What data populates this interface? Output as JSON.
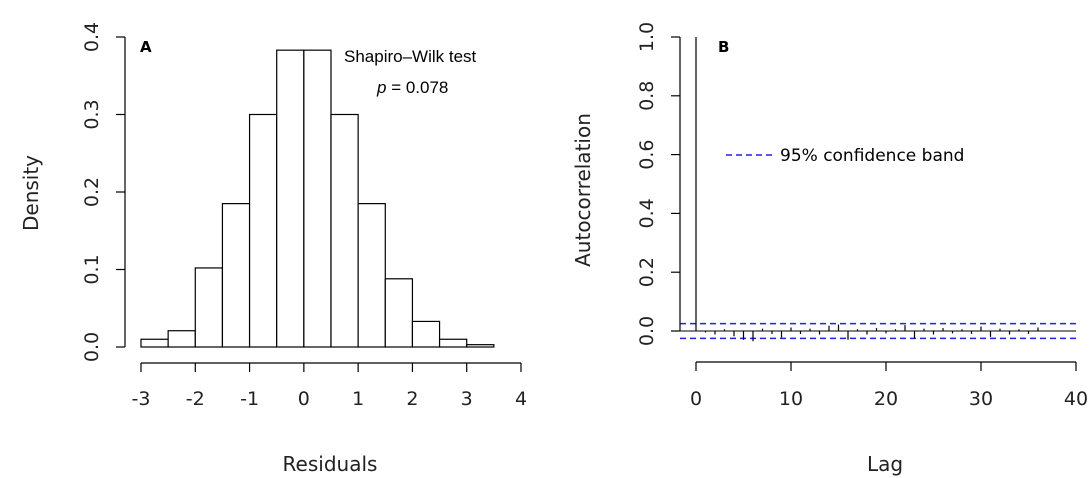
{
  "chart_data": [
    {
      "type": "bar",
      "panel_label": "A",
      "title": "",
      "xlabel": "Residuals",
      "ylabel": "Density",
      "xlim": [
        -3,
        4
      ],
      "ylim": [
        0,
        0.4
      ],
      "xticks": [
        "-3",
        "-2",
        "-1",
        "0",
        "1",
        "2",
        "3",
        "4"
      ],
      "yticks": [
        "0.0",
        "0.1",
        "0.2",
        "0.3",
        "0.4"
      ],
      "bin_edges": [
        -3,
        -2.5,
        -2,
        -1.5,
        -1,
        -0.5,
        0,
        0.5,
        1,
        1.5,
        2,
        2.5,
        3,
        3.5
      ],
      "values": [
        0.01,
        0.021,
        0.102,
        0.185,
        0.3,
        0.383,
        0.383,
        0.3,
        0.185,
        0.088,
        0.033,
        0.01,
        0.003
      ],
      "annotation": {
        "line1": "Shapiro–Wilk test",
        "p_symbol": "p",
        "p_rest": " = 0.078"
      }
    },
    {
      "type": "line",
      "panel_label": "B",
      "title": "",
      "xlabel": "Lag",
      "ylabel": "Autocorrelation",
      "xlim": [
        0,
        40
      ],
      "ylim": [
        0,
        1.0
      ],
      "xticks": [
        "0",
        "10",
        "20",
        "30",
        "40"
      ],
      "yticks": [
        "0.0",
        "0.2",
        "0.4",
        "0.6",
        "0.8",
        "1.0"
      ],
      "lags": [
        0,
        1,
        2,
        3,
        4,
        5,
        6,
        7,
        8,
        9,
        10,
        11,
        12,
        13,
        14,
        15,
        16,
        17,
        18,
        19,
        20,
        21,
        22,
        23,
        24,
        25,
        26,
        27,
        28,
        29,
        30,
        31,
        32,
        33,
        34,
        35,
        36
      ],
      "acf": [
        1.0,
        -0.005,
        -0.012,
        0.006,
        -0.018,
        -0.03,
        -0.035,
        0.008,
        -0.01,
        -0.022,
        0.012,
        -0.01,
        0.008,
        -0.012,
        0.018,
        0.022,
        -0.03,
        0.006,
        -0.012,
        0.01,
        -0.008,
        0.006,
        0.02,
        -0.025,
        0.008,
        -0.012,
        0.01,
        -0.008,
        0.006,
        -0.01,
        0.015,
        -0.02,
        0.008,
        -0.012,
        0.006,
        -0.01,
        0.012
      ],
      "confidence_band": 0.025,
      "legend": "95% confidence band",
      "legend_position": "upper-center",
      "colors": {
        "confidence": "#2222dd"
      }
    }
  ]
}
